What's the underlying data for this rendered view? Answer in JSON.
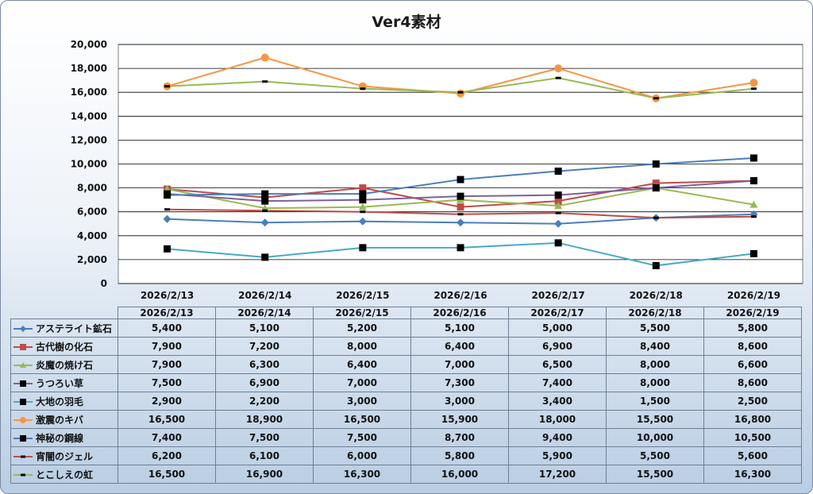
{
  "chart_data": {
    "type": "line",
    "title": "Ver4素材",
    "xlabel": "",
    "ylabel": "",
    "ylim": [
      0,
      20000
    ],
    "yticks": [
      "0",
      "2,000",
      "4,000",
      "6,000",
      "8,000",
      "10,000",
      "12,000",
      "14,000",
      "16,000",
      "18,000",
      "20,000"
    ],
    "categories": [
      "2026/2/13",
      "2026/2/14",
      "2026/2/15",
      "2026/2/16",
      "2026/2/17",
      "2026/2/18",
      "2026/2/19"
    ],
    "series": [
      {
        "name": "アステライト鉱石",
        "color": "#4a7ebb",
        "marker": "diamond",
        "values": [
          5400,
          5100,
          5200,
          5100,
          5000,
          5500,
          5800
        ],
        "labels": [
          "5,400",
          "5,100",
          "5,200",
          "5,100",
          "5,000",
          "5,500",
          "5,800"
        ]
      },
      {
        "name": "古代樹の化石",
        "color": "#be4b48",
        "marker": "square",
        "values": [
          7900,
          7200,
          8000,
          6400,
          6900,
          8400,
          8600
        ],
        "labels": [
          "7,900",
          "7,200",
          "8,000",
          "6,400",
          "6,900",
          "8,400",
          "8,600"
        ]
      },
      {
        "name": "炎魔の焼け石",
        "color": "#98b954",
        "marker": "triangle",
        "values": [
          7900,
          6300,
          6400,
          7000,
          6500,
          8000,
          6600
        ],
        "labels": [
          "7,900",
          "6,300",
          "6,400",
          "7,000",
          "6,500",
          "8,000",
          "6,600"
        ]
      },
      {
        "name": "うつろい草",
        "color": "#7d60a0",
        "marker": "blacksquare",
        "values": [
          7500,
          6900,
          7000,
          7300,
          7400,
          8000,
          8600
        ],
        "labels": [
          "7,500",
          "6,900",
          "7,000",
          "7,300",
          "7,400",
          "8,000",
          "8,600"
        ]
      },
      {
        "name": "大地の羽毛",
        "color": "#46aac4",
        "marker": "blacksquare",
        "values": [
          2900,
          2200,
          3000,
          3000,
          3400,
          1500,
          2500
        ],
        "labels": [
          "2,900",
          "2,200",
          "3,000",
          "3,000",
          "3,400",
          "1,500",
          "2,500"
        ]
      },
      {
        "name": "激震のキバ",
        "color": "#f69545",
        "marker": "circle",
        "values": [
          16500,
          18900,
          16500,
          15900,
          18000,
          15500,
          16800
        ],
        "labels": [
          "16,500",
          "18,900",
          "16,500",
          "15,900",
          "18,000",
          "15,500",
          "16,800"
        ]
      },
      {
        "name": "神秘の鋼線",
        "color": "#4a7ebb",
        "marker": "blacksquare",
        "values": [
          7400,
          7500,
          7500,
          8700,
          9400,
          10000,
          10500
        ],
        "labels": [
          "7,400",
          "7,500",
          "7,500",
          "8,700",
          "9,400",
          "10,000",
          "10,500"
        ]
      },
      {
        "name": "宵闇のジェル",
        "color": "#be4b48",
        "marker": "dash",
        "values": [
          6200,
          6100,
          6000,
          5800,
          5900,
          5500,
          5600
        ],
        "labels": [
          "6,200",
          "6,100",
          "6,000",
          "5,800",
          "5,900",
          "5,500",
          "5,600"
        ]
      },
      {
        "name": "とこしえの虹",
        "color": "#98b954",
        "marker": "dash",
        "values": [
          16500,
          16900,
          16300,
          16000,
          17200,
          15500,
          16300
        ],
        "labels": [
          "16,500",
          "16,900",
          "16,300",
          "16,000",
          "17,200",
          "15,500",
          "16,300"
        ]
      }
    ]
  }
}
